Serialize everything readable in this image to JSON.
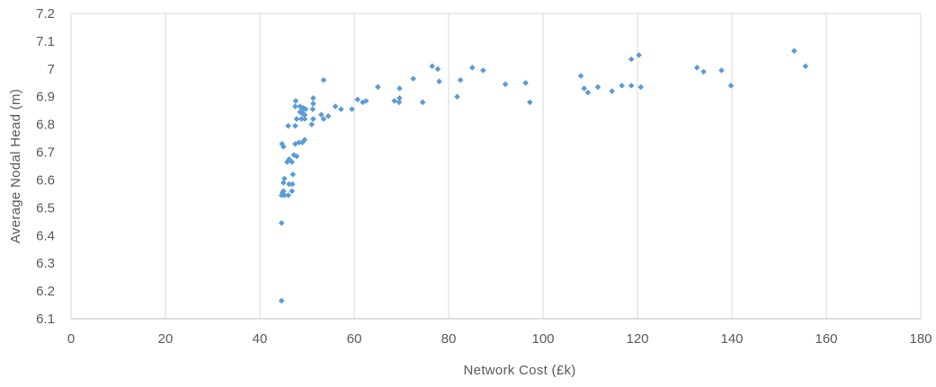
{
  "chart_data": {
    "type": "scatter",
    "title": "",
    "xlabel": "Network Cost (£k)",
    "ylabel": "Average Nodal Head (m)",
    "xlim": [
      0,
      180
    ],
    "ylim": [
      6.1,
      7.2
    ],
    "x_ticks": [
      0,
      20,
      40,
      60,
      80,
      100,
      120,
      140,
      160,
      180
    ],
    "y_ticks": [
      "6.1",
      "6.2",
      "6.3",
      "6.4",
      "6.5",
      "6.6",
      "6.7",
      "6.8",
      "6.9",
      "7",
      "7.1",
      "7.2"
    ],
    "grid": "vertical",
    "legend": "none",
    "marker": "diamond",
    "marker_color": "#5B9BD5",
    "series": [
      {
        "values": [
          [
            44.6,
            6.165
          ],
          [
            44.6,
            6.445
          ],
          [
            44.6,
            6.545
          ],
          [
            44.8,
            6.555
          ],
          [
            45.0,
            6.56
          ],
          [
            45.2,
            6.545
          ],
          [
            45.0,
            6.59
          ],
          [
            45.2,
            6.605
          ],
          [
            44.7,
            6.73
          ],
          [
            45.0,
            6.72
          ],
          [
            46.0,
            6.545
          ],
          [
            46.2,
            6.585
          ],
          [
            45.8,
            6.665
          ],
          [
            46.2,
            6.675
          ],
          [
            46.8,
            6.56
          ],
          [
            46.9,
            6.585
          ],
          [
            47.0,
            6.62
          ],
          [
            46.8,
            6.665
          ],
          [
            47.2,
            6.69
          ],
          [
            47.8,
            6.685
          ],
          [
            47.5,
            6.73
          ],
          [
            48.3,
            6.735
          ],
          [
            46.0,
            6.795
          ],
          [
            47.5,
            6.795
          ],
          [
            47.8,
            6.82
          ],
          [
            47.5,
            6.865
          ],
          [
            47.6,
            6.885
          ],
          [
            48.5,
            6.845
          ],
          [
            48.5,
            6.865
          ],
          [
            48.8,
            6.82
          ],
          [
            49.0,
            6.735
          ],
          [
            49.5,
            6.745
          ],
          [
            49.0,
            6.84
          ],
          [
            49.2,
            6.855
          ],
          [
            49.2,
            6.86
          ],
          [
            49.5,
            6.835
          ],
          [
            49.5,
            6.82
          ],
          [
            49.7,
            6.855
          ],
          [
            51.0,
            6.8
          ],
          [
            51.3,
            6.82
          ],
          [
            51.2,
            6.855
          ],
          [
            51.3,
            6.875
          ],
          [
            51.3,
            6.895
          ],
          [
            53.0,
            6.835
          ],
          [
            53.5,
            6.82
          ],
          [
            54.5,
            6.83
          ],
          [
            53.5,
            6.96
          ],
          [
            56.0,
            6.865
          ],
          [
            57.2,
            6.855
          ],
          [
            59.5,
            6.855
          ],
          [
            60.7,
            6.89
          ],
          [
            61.8,
            6.88
          ],
          [
            62.5,
            6.885
          ],
          [
            65.0,
            6.935
          ],
          [
            68.5,
            6.885
          ],
          [
            69.5,
            6.88
          ],
          [
            69.6,
            6.895
          ],
          [
            69.6,
            6.93
          ],
          [
            72.5,
            6.965
          ],
          [
            74.5,
            6.88
          ],
          [
            76.5,
            7.01
          ],
          [
            77.7,
            7.0
          ],
          [
            78.0,
            6.955
          ],
          [
            81.8,
            6.9
          ],
          [
            82.5,
            6.96
          ],
          [
            85.0,
            7.005
          ],
          [
            87.3,
            6.995
          ],
          [
            92.0,
            6.945
          ],
          [
            96.3,
            6.95
          ],
          [
            97.2,
            6.88
          ],
          [
            108.0,
            6.975
          ],
          [
            108.7,
            6.93
          ],
          [
            109.5,
            6.915
          ],
          [
            111.6,
            6.935
          ],
          [
            114.6,
            6.92
          ],
          [
            116.7,
            6.94
          ],
          [
            118.7,
            6.94
          ],
          [
            118.7,
            7.035
          ],
          [
            120.3,
            7.05
          ],
          [
            120.7,
            6.935
          ],
          [
            132.6,
            7.005
          ],
          [
            134.0,
            6.99
          ],
          [
            137.8,
            6.995
          ],
          [
            139.8,
            6.94
          ],
          [
            153.2,
            7.065
          ],
          [
            155.6,
            7.01
          ]
        ]
      }
    ]
  }
}
